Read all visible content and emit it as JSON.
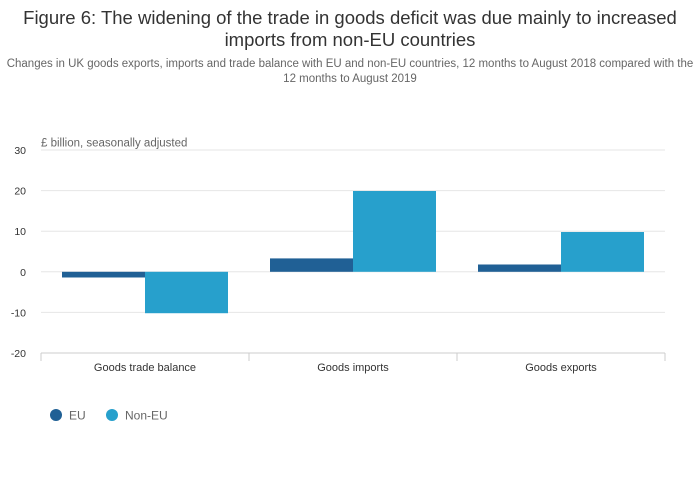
{
  "title": "Figure 6: The widening of the trade in goods deficit was due mainly to increased imports from non-EU countries",
  "subtitle": "Changes in UK goods exports, imports and trade balance with EU and non-EU countries, 12 months to August 2018 compared with the 12 months to August 2019",
  "chart_data": {
    "type": "bar",
    "title": "Figure 6: The widening of the trade in goods deficit was due mainly to increased imports from non-EU countries",
    "subtitle": "Changes in UK goods exports, imports and trade balance with EU and non-EU countries, 12 months to August 2018 compared with the 12 months to August 2019",
    "ylabel": "£ billion, seasonally adjusted",
    "xlabel": "",
    "categories": [
      "Goods trade balance",
      "Goods imports",
      "Goods exports"
    ],
    "series": [
      {
        "name": "EU",
        "color": "#206095",
        "values": [
          -1.4,
          3.3,
          1.8
        ]
      },
      {
        "name": "Non-EU",
        "color": "#27a0cc",
        "values": [
          -10.2,
          19.9,
          9.8
        ]
      }
    ],
    "ylim": [
      -20,
      30
    ],
    "yticks": [
      30,
      20,
      10,
      0,
      -10,
      -20
    ],
    "ytick_labels": [
      "30",
      "20",
      "10",
      "0",
      "-10",
      "-20"
    ],
    "grid": true,
    "legend": "bottom-left"
  }
}
